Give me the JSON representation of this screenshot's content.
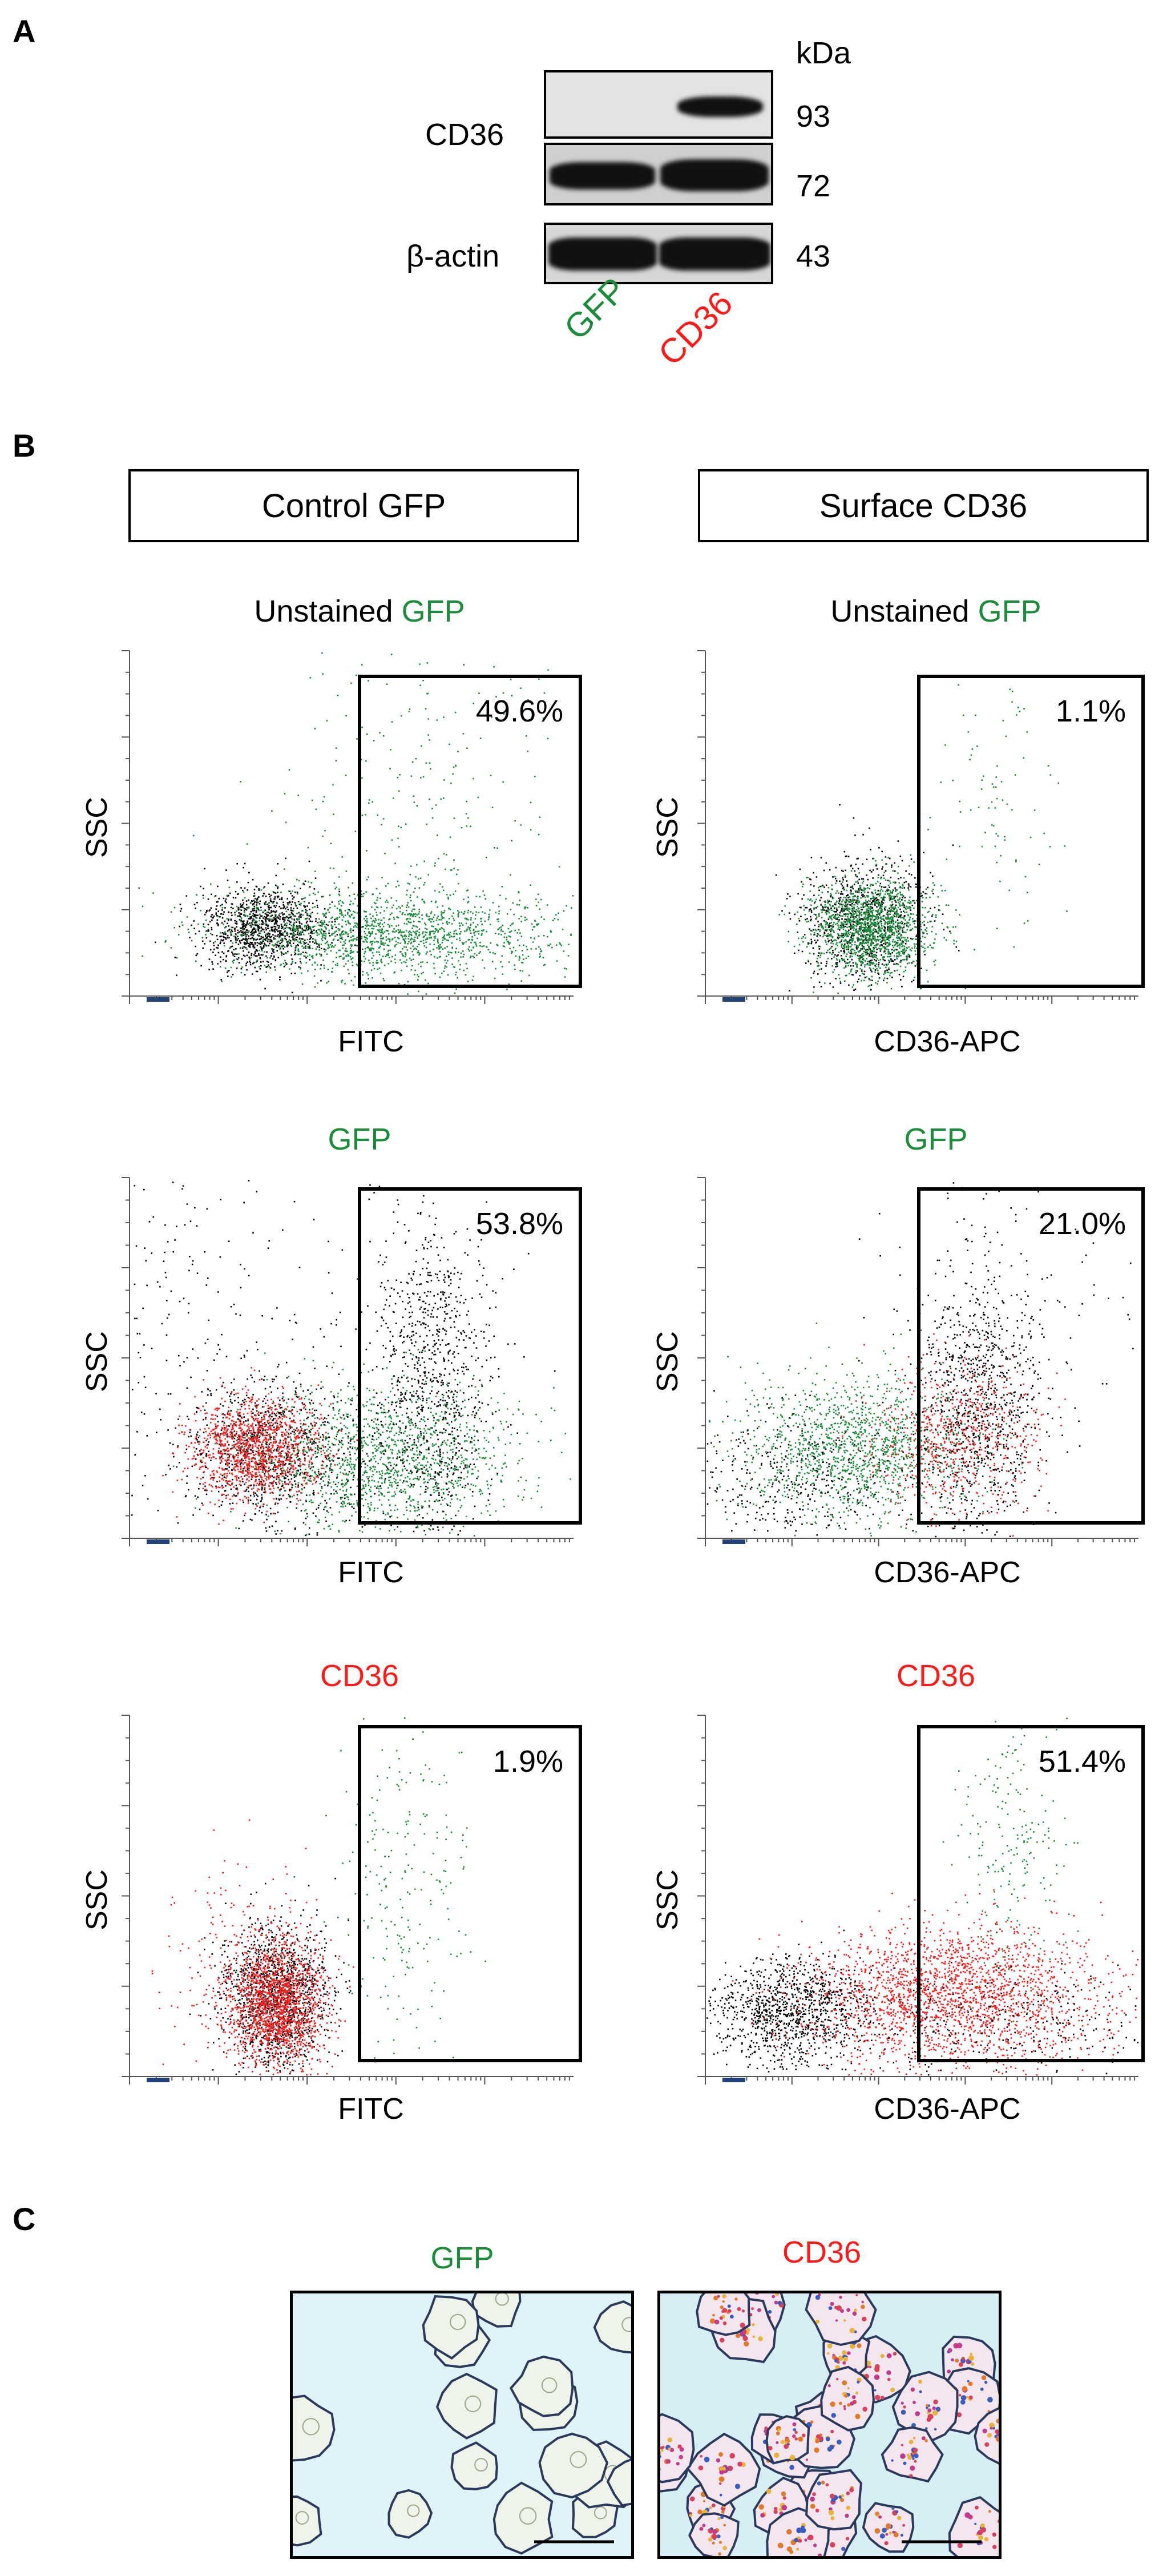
{
  "panel_a": {
    "letter": "A",
    "kda_label": "kDa",
    "cd36_label": "CD36",
    "actin_label": "β-actin",
    "markers": [
      "93",
      "72",
      "43"
    ],
    "lanes": [
      "GFP",
      "CD36"
    ]
  },
  "panel_b": {
    "letter": "B",
    "column_headers": [
      "Control GFP",
      "Surface CD36"
    ],
    "y_label": "SSC",
    "plots": [
      {
        "title_prefix": "Unstained ",
        "title_main": "GFP",
        "title_color": "green",
        "percent": "49.6%",
        "x_label": "FITC"
      },
      {
        "title_prefix": "Unstained ",
        "title_main": "GFP",
        "title_color": "green",
        "percent": "1.1%",
        "x_label": "CD36-APC"
      },
      {
        "title_prefix": "",
        "title_main": "GFP",
        "title_color": "green",
        "percent": "53.8%",
        "x_label": "FITC"
      },
      {
        "title_prefix": "",
        "title_main": "GFP",
        "title_color": "green",
        "percent": "21.0%",
        "x_label": "CD36-APC"
      },
      {
        "title_prefix": "",
        "title_main": "CD36",
        "title_color": "red",
        "percent": "1.9%",
        "x_label": "FITC"
      },
      {
        "title_prefix": "",
        "title_main": "CD36",
        "title_color": "red",
        "percent": "51.4%",
        "x_label": "CD36-APC"
      }
    ]
  },
  "panel_c": {
    "letter": "C",
    "labels": [
      "GFP",
      "CD36"
    ]
  },
  "colors": {
    "green": "#1a8c3a",
    "red": "#ff1a1a",
    "black": "#000000"
  }
}
